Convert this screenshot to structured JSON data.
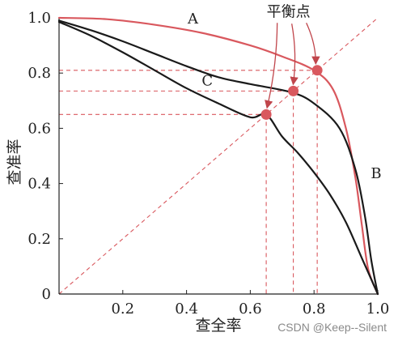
{
  "chart_data": {
    "type": "line",
    "xlabel": "查全率",
    "ylabel": "查准率",
    "xlim": [
      0,
      1
    ],
    "ylim": [
      0,
      1
    ],
    "x_ticks": [
      {
        "v": 0.2,
        "label": "0.2"
      },
      {
        "v": 0.4,
        "label": "0.4"
      },
      {
        "v": 0.6,
        "label": "0.6"
      },
      {
        "v": 0.8,
        "label": "0.8"
      },
      {
        "v": 1.0,
        "label": "1.0"
      }
    ],
    "y_ticks": [
      {
        "v": 0.0,
        "label": "0"
      },
      {
        "v": 0.2,
        "label": "0.2"
      },
      {
        "v": 0.4,
        "label": "0.4"
      },
      {
        "v": 0.6,
        "label": "0.6"
      },
      {
        "v": 0.8,
        "label": "0.8"
      },
      {
        "v": 1.0,
        "label": "1.0"
      }
    ],
    "series": [
      {
        "name": "A",
        "color": "#d9585e",
        "label_at": [
          0.42,
          0.98
        ],
        "points": [
          [
            0,
            1.0
          ],
          [
            0.15,
            0.995
          ],
          [
            0.3,
            0.975
          ],
          [
            0.45,
            0.945
          ],
          [
            0.6,
            0.9
          ],
          [
            0.7,
            0.86
          ],
          [
            0.8,
            0.81
          ],
          [
            0.86,
            0.74
          ],
          [
            0.9,
            0.6
          ],
          [
            0.93,
            0.42
          ],
          [
            0.95,
            0.25
          ],
          [
            0.97,
            0.09
          ],
          [
            1.0,
            0.0
          ]
        ]
      },
      {
        "name": "B",
        "color": "#1a1a1a",
        "label_at": [
          0.995,
          0.42
        ],
        "points": [
          [
            0,
            0.99
          ],
          [
            0.1,
            0.955
          ],
          [
            0.2,
            0.915
          ],
          [
            0.3,
            0.87
          ],
          [
            0.4,
            0.825
          ],
          [
            0.5,
            0.785
          ],
          [
            0.6,
            0.76
          ],
          [
            0.73,
            0.73
          ],
          [
            0.8,
            0.69
          ],
          [
            0.88,
            0.6
          ],
          [
            0.93,
            0.45
          ],
          [
            0.96,
            0.28
          ],
          [
            0.98,
            0.12
          ],
          [
            1.0,
            0.0
          ]
        ]
      },
      {
        "name": "C",
        "color": "#1a1a1a",
        "label_at": [
          0.465,
          0.755
        ],
        "points": [
          [
            0,
            0.985
          ],
          [
            0.1,
            0.935
          ],
          [
            0.2,
            0.875
          ],
          [
            0.3,
            0.81
          ],
          [
            0.4,
            0.745
          ],
          [
            0.5,
            0.69
          ],
          [
            0.6,
            0.64
          ],
          [
            0.65,
            0.65
          ],
          [
            0.7,
            0.57
          ],
          [
            0.75,
            0.51
          ],
          [
            0.8,
            0.44
          ],
          [
            0.85,
            0.36
          ],
          [
            0.9,
            0.26
          ],
          [
            0.95,
            0.13
          ],
          [
            1.0,
            0.0
          ]
        ]
      }
    ],
    "break_even_points": [
      [
        0.81,
        0.81
      ],
      [
        0.735,
        0.735
      ],
      [
        0.65,
        0.65
      ]
    ],
    "annotation": {
      "text": "平衡点",
      "anchor": [
        0.72,
        1.005
      ]
    },
    "diagonal": [
      [
        0,
        0
      ],
      [
        1,
        1
      ]
    ]
  },
  "watermark": "CSDN @Keep--Silent"
}
